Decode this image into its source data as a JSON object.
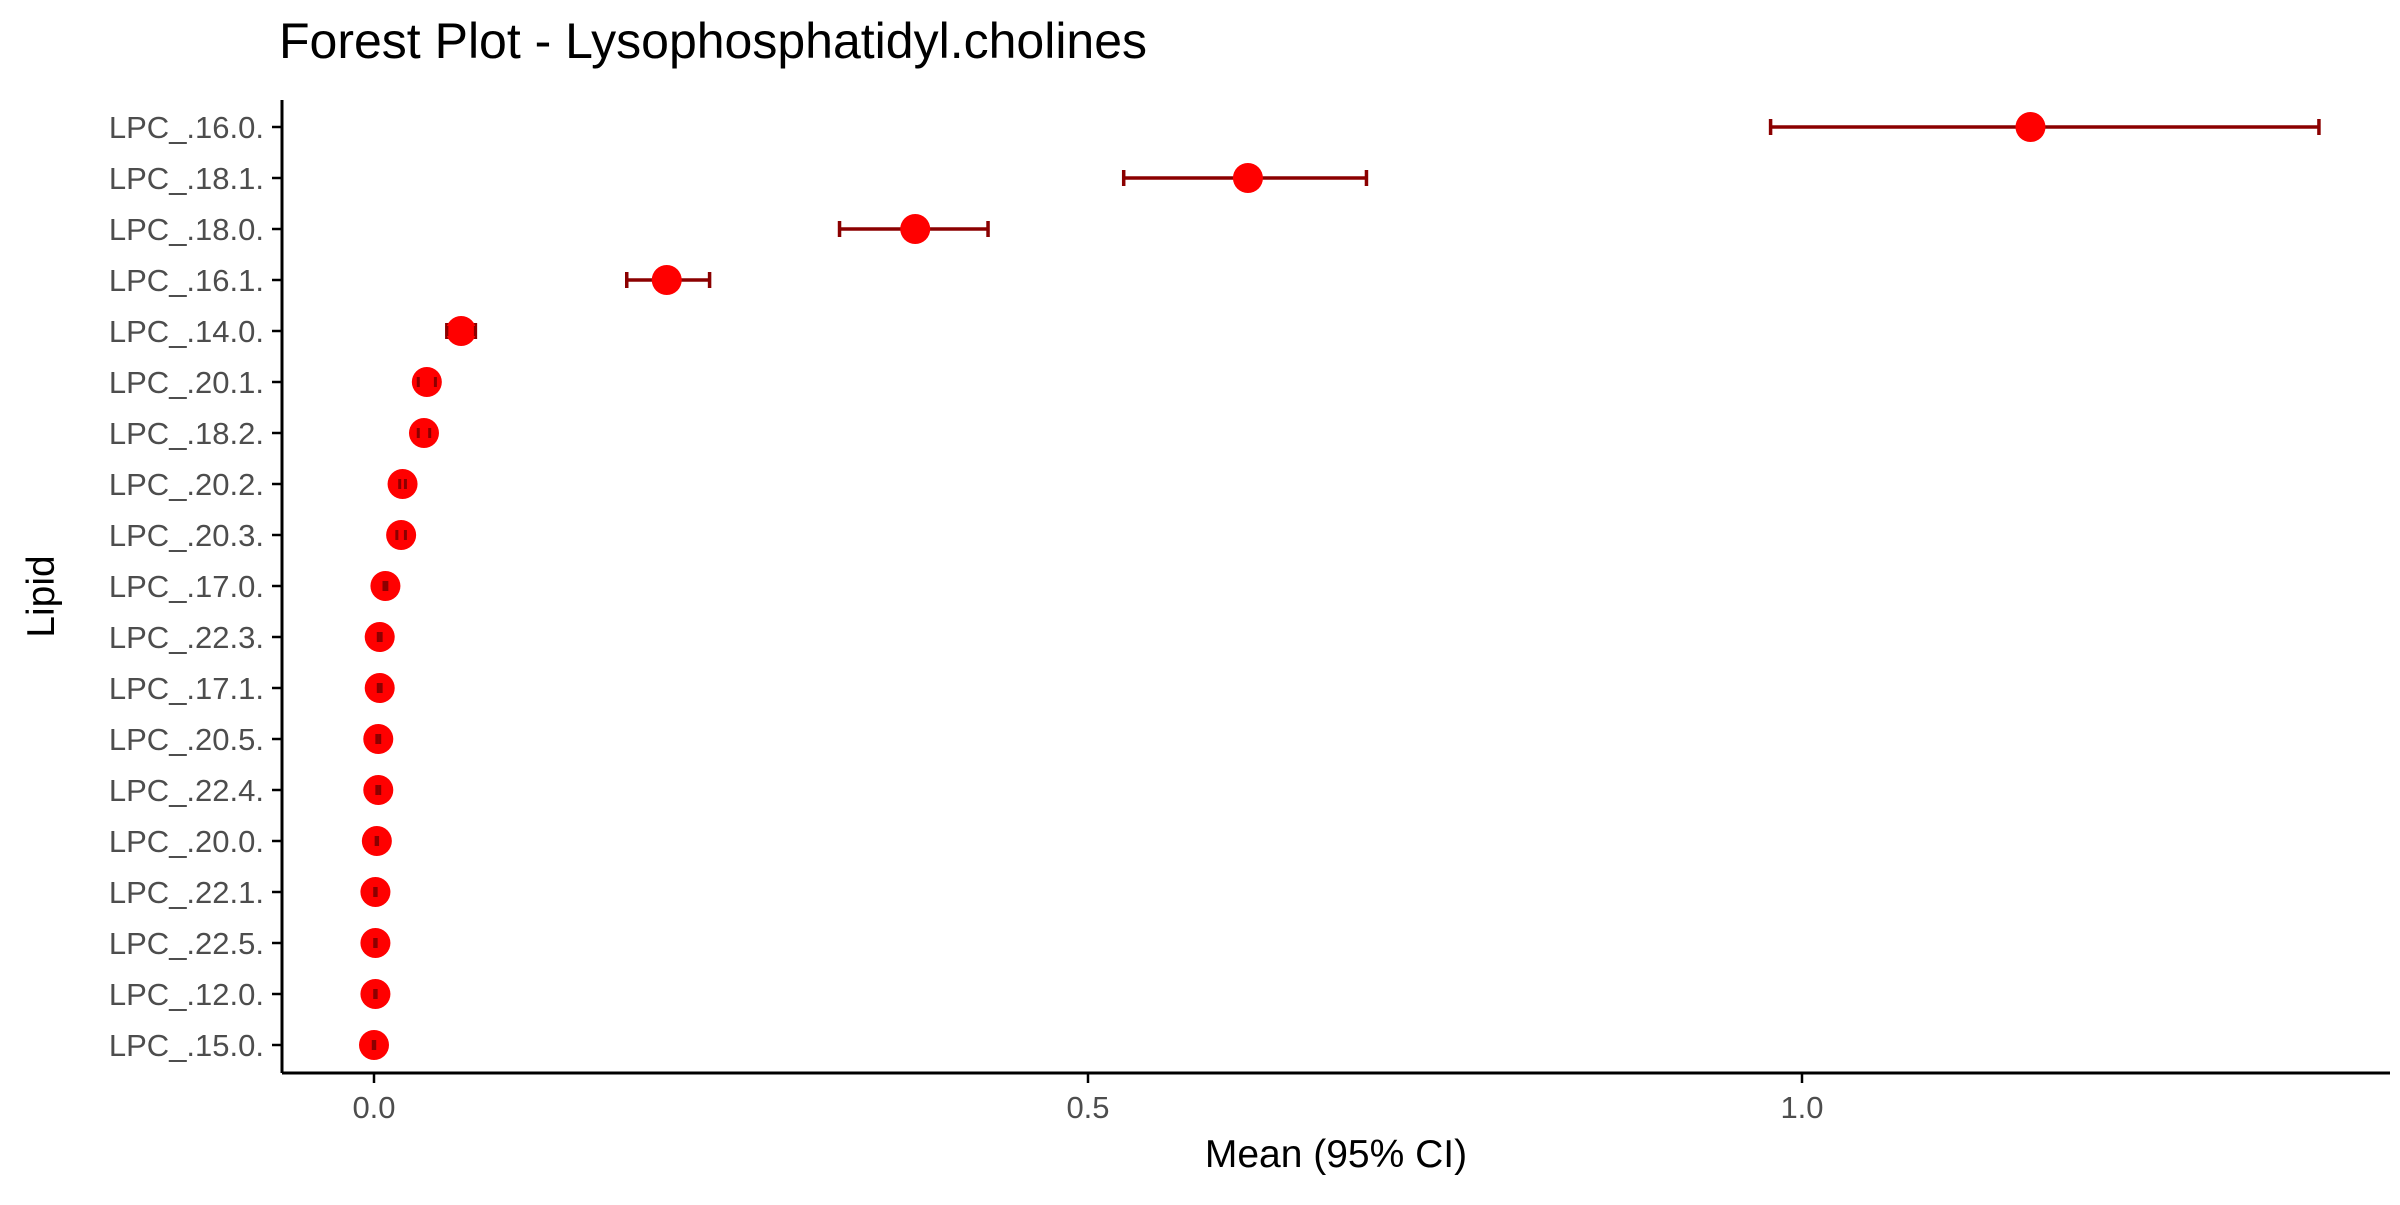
{
  "chart_data": {
    "type": "forest",
    "title": "Forest Plot - Lysophosphatidyl.cholines",
    "xlabel": "Mean (95% CI)",
    "ylabel": "Lipid",
    "xlim": [
      -0.065,
      1.405
    ],
    "x_ticks": [
      {
        "value": 0.0,
        "label": "0.0"
      },
      {
        "value": 0.5,
        "label": "0.5"
      },
      {
        "value": 1.0,
        "label": "1.0"
      }
    ],
    "grid": false,
    "legend": "none",
    "colors": {
      "point": "#ff0000",
      "ci": "#8b0000",
      "axis": "#000000",
      "tick_label": "#4d4d4d"
    },
    "rows": [
      {
        "lipid": "LPC_.16.0.",
        "mean": 1.16,
        "lower": 0.978,
        "upper": 1.362
      },
      {
        "lipid": "LPC_.18.1.",
        "mean": 0.612,
        "lower": 0.525,
        "upper": 0.695
      },
      {
        "lipid": "LPC_.18.0.",
        "mean": 0.379,
        "lower": 0.326,
        "upper": 0.43
      },
      {
        "lipid": "LPC_.16.1.",
        "mean": 0.205,
        "lower": 0.177,
        "upper": 0.235
      },
      {
        "lipid": "LPC_.14.0.",
        "mean": 0.061,
        "lower": 0.051,
        "upper": 0.071
      },
      {
        "lipid": "LPC_.20.1.",
        "mean": 0.037,
        "lower": 0.031,
        "upper": 0.043
      },
      {
        "lipid": "LPC_.18.2.",
        "mean": 0.035,
        "lower": 0.031,
        "upper": 0.039
      },
      {
        "lipid": "LPC_.20.2.",
        "mean": 0.02,
        "lower": 0.018,
        "upper": 0.022
      },
      {
        "lipid": "LPC_.20.3.",
        "mean": 0.019,
        "lower": 0.016,
        "upper": 0.022
      },
      {
        "lipid": "LPC_.17.0.",
        "mean": 0.008,
        "lower": 0.007,
        "upper": 0.009
      },
      {
        "lipid": "LPC_.22.3.",
        "mean": 0.004,
        "lower": 0.003,
        "upper": 0.005
      },
      {
        "lipid": "LPC_.17.1.",
        "mean": 0.004,
        "lower": 0.003,
        "upper": 0.005
      },
      {
        "lipid": "LPC_.20.5.",
        "mean": 0.003,
        "lower": 0.002,
        "upper": 0.004
      },
      {
        "lipid": "LPC_.22.4.",
        "mean": 0.003,
        "lower": 0.002,
        "upper": 0.004
      },
      {
        "lipid": "LPC_.20.0.",
        "mean": 0.002,
        "lower": 0.0015,
        "upper": 0.0025
      },
      {
        "lipid": "LPC_.22.1.",
        "mean": 0.001,
        "lower": 0.0005,
        "upper": 0.0015
      },
      {
        "lipid": "LPC_.22.5.",
        "mean": 0.001,
        "lower": 0.0005,
        "upper": 0.0015
      },
      {
        "lipid": "LPC_.12.0.",
        "mean": 0.001,
        "lower": 0.0005,
        "upper": 0.0015
      },
      {
        "lipid": "LPC_.15.0.",
        "mean": 0.0,
        "lower": -0.0005,
        "upper": 0.0005
      }
    ]
  }
}
